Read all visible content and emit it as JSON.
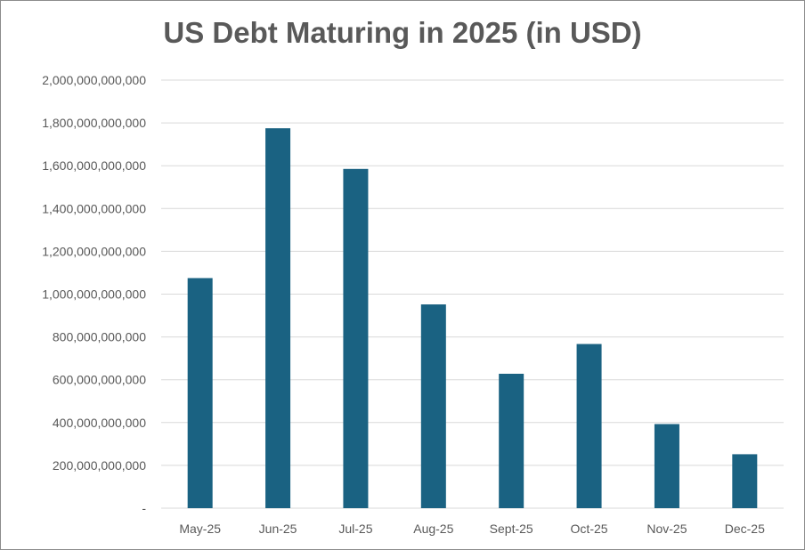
{
  "chart_data": {
    "type": "bar",
    "title": "US Debt Maturing in 2025 (in USD)",
    "xlabel": "",
    "ylabel": "",
    "categories": [
      "May-25",
      "Jun-25",
      "Jul-25",
      "Aug-25",
      "Sept-25",
      "Oct-25",
      "Nov-25",
      "Dec-25"
    ],
    "values": [
      1075000000000,
      1775000000000,
      1585000000000,
      952000000000,
      628000000000,
      767000000000,
      393000000000,
      252000000000
    ],
    "ylim": [
      0,
      2000000000000
    ],
    "yticks": [
      0,
      200000000000,
      400000000000,
      600000000000,
      800000000000,
      1000000000000,
      1200000000000,
      1400000000000,
      1600000000000,
      1800000000000,
      2000000000000
    ],
    "ytick_labels": [
      "-",
      "200,000,000,000",
      "400,000,000,000",
      "600,000,000,000",
      "800,000,000,000",
      "1,000,000,000,000",
      "1,200,000,000,000",
      "1,400,000,000,000",
      "1,600,000,000,000",
      "1,800,000,000,000",
      "2,000,000,000,000"
    ],
    "grid": true,
    "legend": "none",
    "colors": {
      "bar": "#1a6282",
      "grid": "#d9d9d9",
      "text": "#595959"
    }
  }
}
